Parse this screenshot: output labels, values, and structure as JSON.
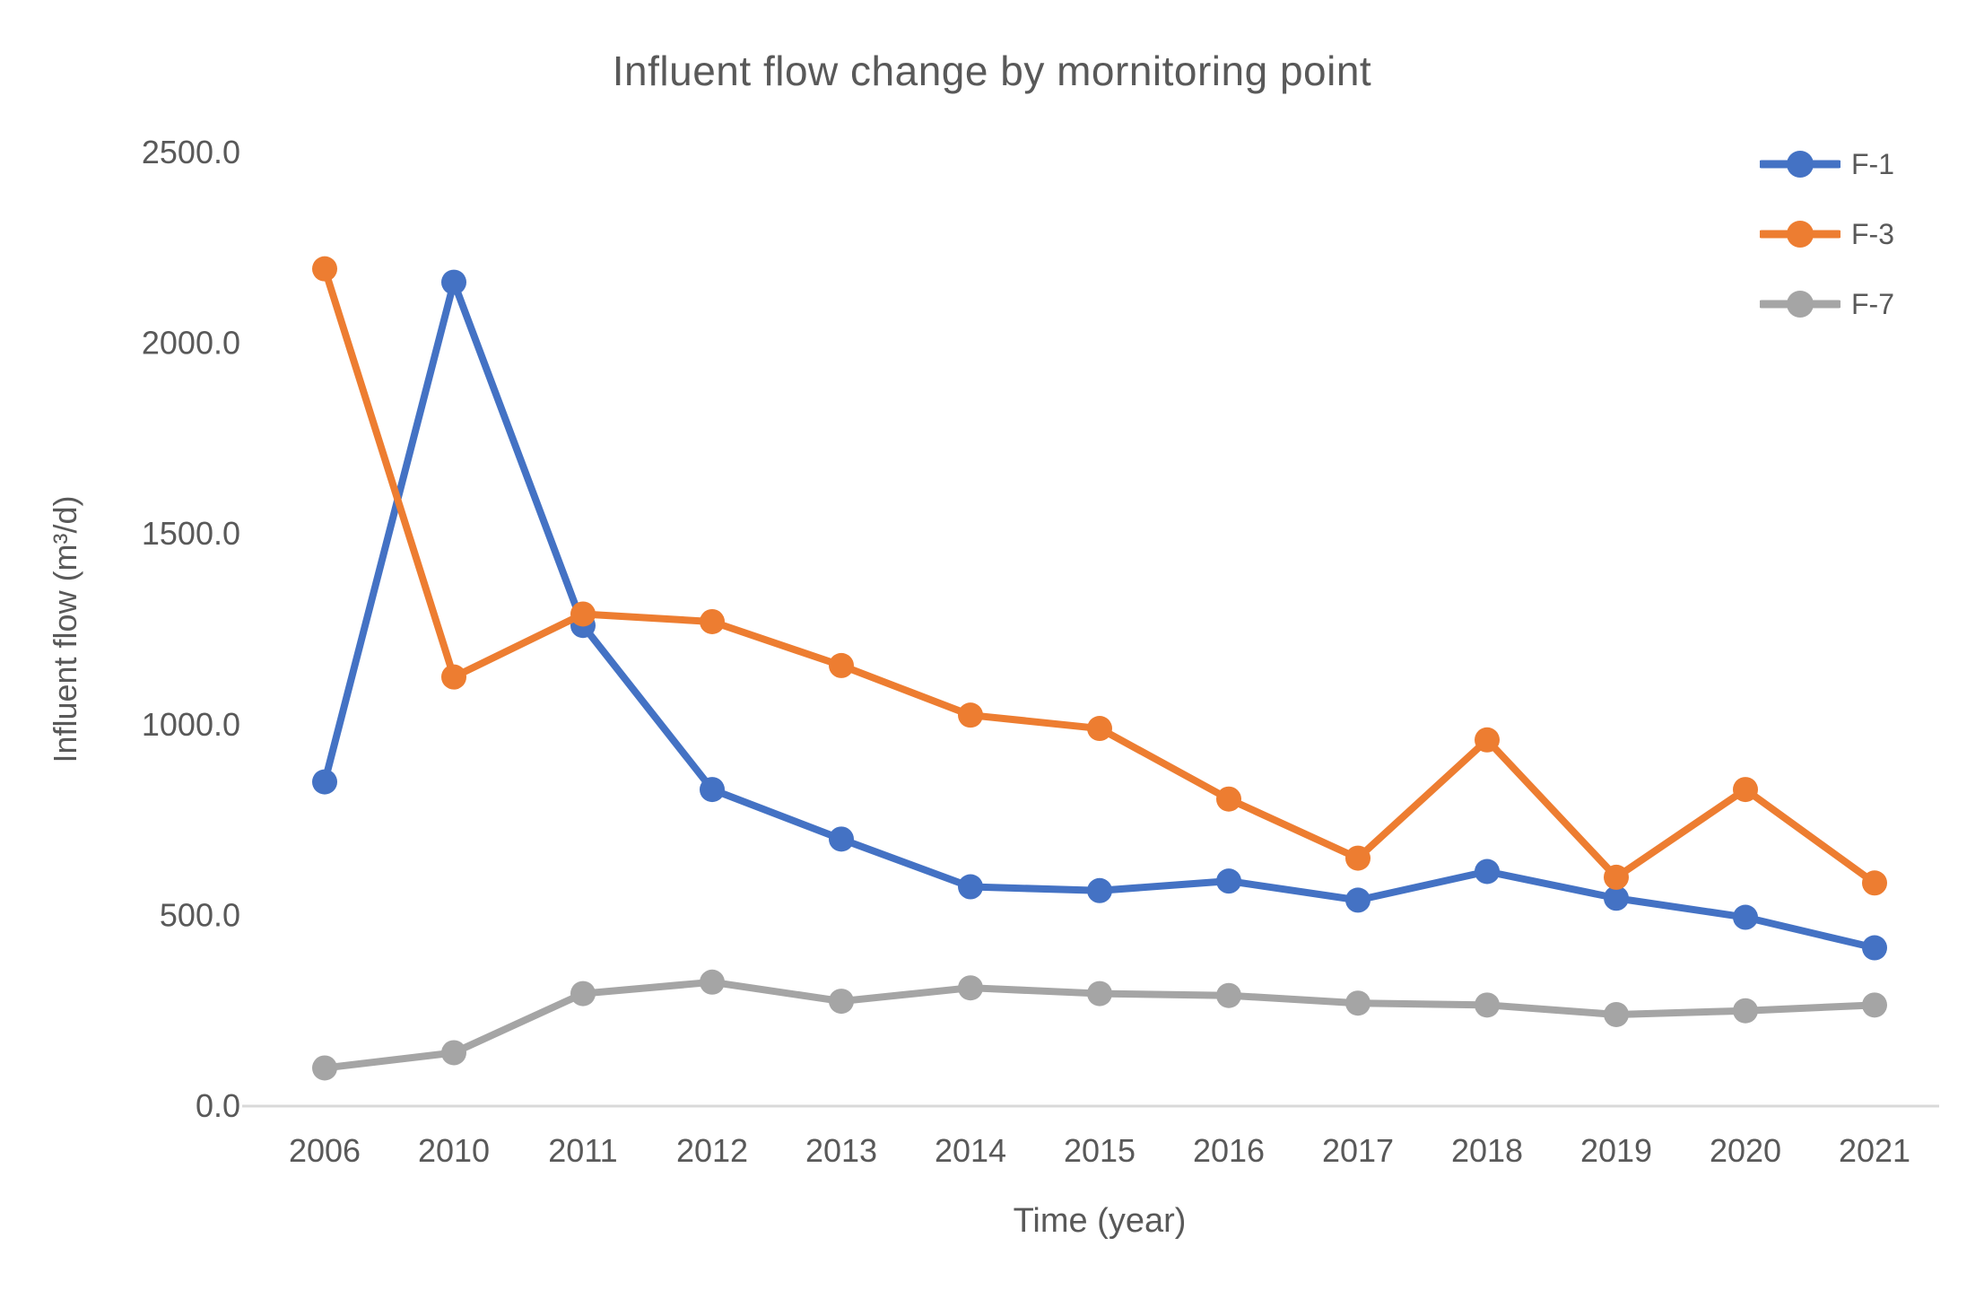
{
  "chart_data": {
    "type": "line",
    "title": "Influent flow change by mornitoring point",
    "xlabel": "Time (year)",
    "ylabel": "Influent flow (m³/d)",
    "categories": [
      "2006",
      "2010",
      "2011",
      "2012",
      "2013",
      "2014",
      "2015",
      "2016",
      "2017",
      "2018",
      "2019",
      "2020",
      "2021"
    ],
    "series": [
      {
        "name": "F-1",
        "color": "#4472C4",
        "values": [
          850,
          2160,
          1260,
          830,
          700,
          575,
          565,
          590,
          540,
          615,
          545,
          495,
          415
        ]
      },
      {
        "name": "F-3",
        "color": "#ED7D31",
        "values": [
          2195,
          1125,
          1290,
          1270,
          1155,
          1025,
          990,
          805,
          650,
          960,
          600,
          830,
          585
        ]
      },
      {
        "name": "F-7",
        "color": "#A5A5A5",
        "values": [
          100,
          140,
          295,
          325,
          275,
          310,
          295,
          290,
          270,
          265,
          240,
          250,
          265
        ]
      }
    ],
    "ylim": [
      0,
      2500
    ],
    "y_ticks": [
      "0.0",
      "500.0",
      "1000.0",
      "1500.0",
      "2000.0",
      "2500.0"
    ],
    "grid": false,
    "legend_position": "top-right",
    "axis_line_color": "#D9D9D9",
    "text_color": "#595959",
    "marker": "circle"
  }
}
